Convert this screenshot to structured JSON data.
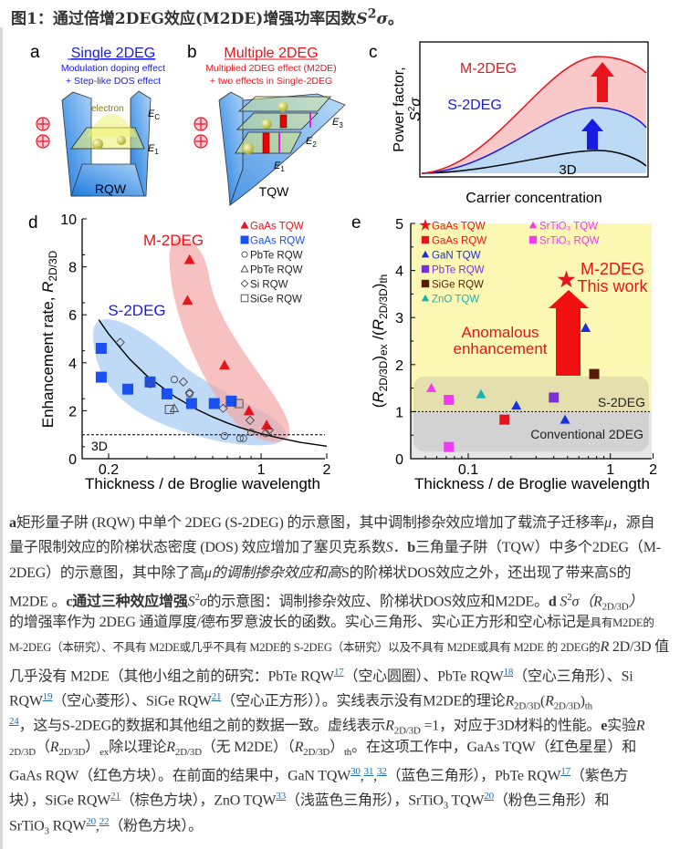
{
  "title": {
    "prefix": "图1：通过倍增2DEG效应(M2DE)增强功率因数",
    "symbol": "S",
    "sup": "2",
    "sigma": "σ",
    "end": "。"
  },
  "panel_a": {
    "letter": "a",
    "heading": "Single 2DEG",
    "line1": "Modulation doping effect",
    "line2": "+ Step-like DOS effect",
    "electron": "electron",
    "ec": "E",
    "ec_sub": "C",
    "e1": "E",
    "e1_sub": "1",
    "well": "RQW",
    "colors": {
      "heading": "#1a1ae6",
      "well": "#4a9be8",
      "plus": "#e8141c"
    }
  },
  "panel_b": {
    "letter": "b",
    "heading": "Multiple 2DEG",
    "line1": "Multiplied 2DEG effect (M2DE)",
    "line2": "+ two effects in Single-2DEG",
    "e1": "E",
    "e1_sub": "1",
    "e2": "E",
    "e2_sub": "2",
    "e3": "E",
    "e3_sub": "3",
    "well": "TQW",
    "colors": {
      "heading": "#e8141c"
    }
  },
  "panel_c": {
    "letter": "c",
    "ylabel": "Power factor,",
    "ylabel2": "S",
    "ylabel2_sup": "2",
    "ylabel2_sym": "σ",
    "xlabel": "Carrier concentration",
    "curves": [
      "M-2DEG",
      "S-2DEG",
      "3D"
    ],
    "colors": {
      "M-2DEG": "#e8141c",
      "S-2DEG": "#1a1ae6",
      "3D": "#000000"
    }
  },
  "chart_data": [
    {
      "panel": "d",
      "type": "scatter",
      "xlabel": "Thickness / de Broglie wavelength",
      "ylabel": {
        "text": "Enhancement rate, ",
        "sym": "R",
        "sub": "2D/3D"
      },
      "xscale": "log",
      "xlim": [
        0.16,
        2
      ],
      "ylim": [
        0,
        10
      ],
      "xticks": [
        "0.2",
        "1",
        "2"
      ],
      "yticks": [
        "0",
        "2",
        "4",
        "6",
        "8",
        "10"
      ],
      "annotations": {
        "m2deg": "M-2DEG",
        "s2deg": "S-2DEG",
        "ref": "3D"
      },
      "reference_line": {
        "y": 1,
        "style": "dashed"
      },
      "theory_curve": {
        "x": [
          0.18,
          0.2,
          0.25,
          0.3,
          0.4,
          0.5,
          0.6,
          0.7,
          0.8,
          1.0,
          1.2,
          1.5,
          2.0
        ],
        "y": [
          5.8,
          5.2,
          4.15,
          3.45,
          2.6,
          2.08,
          1.74,
          1.49,
          1.3,
          1.04,
          0.87,
          0.69,
          0.52
        ]
      },
      "legend": "top-right",
      "series": [
        {
          "name": "GaAs TQW",
          "marker": "triangle-filled",
          "color": "#e8141c",
          "x": [
            0.46,
            0.47,
            0.68,
            0.88,
            1.06
          ],
          "y": [
            6.6,
            8.3,
            3.9,
            2.0,
            1.4
          ]
        },
        {
          "name": "GaAs RQW",
          "marker": "square-filled",
          "color": "#1a4ff0",
          "x": [
            0.185,
            0.185,
            0.245,
            0.31,
            0.37,
            0.48,
            0.61,
            0.73
          ],
          "y": [
            4.6,
            3.4,
            2.9,
            3.2,
            2.7,
            2.3,
            2.3,
            2.4
          ]
        },
        {
          "name": "PbTe RQW",
          "marker": "circle-open",
          "color": "#444444",
          "x": [
            0.31,
            0.4,
            0.47,
            0.68,
            0.8,
            0.83,
            0.9,
            1.05
          ],
          "y": [
            3.1,
            3.3,
            2.7,
            0.95,
            0.85,
            0.85,
            1.1,
            1.05
          ]
        },
        {
          "name": "PbTe RQW",
          "marker": "triangle-open",
          "color": "#444444",
          "x": [
            0.4
          ],
          "y": [
            2.1
          ]
        },
        {
          "name": "Si RQW",
          "marker": "diamond-open",
          "color": "#444444",
          "x": [
            0.226,
            0.44,
            0.47,
            0.67,
            0.89,
            1.09
          ],
          "y": [
            4.85,
            3.2,
            2.75,
            2.1,
            1.6,
            1.2
          ]
        },
        {
          "name": "SiGe RQW",
          "marker": "square-open",
          "color": "#444444",
          "x": [
            0.38,
            0.79
          ],
          "y": [
            2.05,
            2.3
          ]
        }
      ]
    },
    {
      "panel": "e",
      "type": "scatter",
      "xlabel": "Thickness / de Broglie wavelength",
      "ylabel": {
        "open1": "(",
        "sym1": "R",
        "sub1": "2D/3D",
        "close1": ")",
        "sub_ex": "ex",
        "mid": " /(",
        "sym2": "R",
        "sub2": "2D/3D",
        "close2": ")",
        "sub_th": "th"
      },
      "xscale": "log",
      "xlim": [
        0.045,
        2
      ],
      "ylim": [
        0,
        5
      ],
      "xticks": [
        "0.1",
        "1",
        "2"
      ],
      "yticks": [
        "0",
        "1",
        "2",
        "3",
        "4",
        "5"
      ],
      "background": "#fcf8b4",
      "annotations": {
        "title1": "M-2DEG",
        "title2": "This work",
        "arrow1": "Anomalous",
        "arrow2": "enhancement",
        "band_upper": "S-2DEG",
        "band_lower": "Conventional 2DEG"
      },
      "reference_line": {
        "y": 1,
        "style": "dotted"
      },
      "legend": "top-left",
      "series": [
        {
          "name": "GaAs TQW",
          "marker": "star",
          "color": "#e8141c",
          "x": [
            0.49
          ],
          "y": [
            3.8
          ]
        },
        {
          "name": "GaAs RQW",
          "marker": "square-filled",
          "color": "#e8141c",
          "x": [
            0.18
          ],
          "y": [
            0.83
          ]
        },
        {
          "name": "GaN TQW",
          "marker": "triangle-filled",
          "color": "#1a2fe0",
          "x": [
            0.218,
            0.48,
            0.67
          ],
          "y": [
            1.13,
            0.83,
            2.78
          ]
        },
        {
          "name": "PbTe RQW",
          "marker": "square-filled",
          "color": "#7d2fd6",
          "x": [
            0.4
          ],
          "y": [
            1.3
          ]
        },
        {
          "name": "SiGe RQW",
          "marker": "square-filled",
          "color": "#5a1a08",
          "x": [
            0.77
          ],
          "y": [
            1.8
          ]
        },
        {
          "name": "ZnO TQW",
          "marker": "triangle-filled",
          "color": "#1ab3b3",
          "x": [
            0.123
          ],
          "y": [
            1.37
          ]
        },
        {
          "name": "SrTiO₃ TQW",
          "marker": "triangle-filled",
          "color": "#f03cf0",
          "x": [
            0.055
          ],
          "y": [
            1.5
          ]
        },
        {
          "name": "SrTiO₃ RQW",
          "marker": "square-filled",
          "color": "#f03cf0",
          "x": [
            0.073,
            0.073
          ],
          "y": [
            1.25,
            0.25
          ]
        }
      ]
    }
  ],
  "caption": [
    [
      [
        "b",
        "a"
      ],
      [
        "n",
        "矩形量子阱 (RQW) 中单个 2DEG (S-2DEG) 的示意图，其中调制掺杂效应增加了载流子迁移率"
      ],
      [
        "i",
        "μ"
      ],
      [
        "n",
        "，源自"
      ]
    ],
    [
      [
        "n",
        "量子限制效应的阶梯状态密度 (DOS) 效应增加了塞贝克系数"
      ],
      [
        "i",
        "S"
      ],
      [
        "n",
        "．"
      ],
      [
        "b",
        "b"
      ],
      [
        "n",
        "三角量子阱（TQW）中多个2DEG（M-"
      ]
    ],
    [
      [
        "n",
        "2DEG）的示意图，其中除了高"
      ],
      [
        "i",
        "μ的调制掺杂效应和高"
      ],
      [
        "n",
        "S的阶梯状DOS效应之外，还出现了带来高S的"
      ]
    ],
    [
      [
        "n",
        "M2DE 。"
      ],
      [
        "b",
        "c通过三种效应增强"
      ],
      [
        "i",
        "S"
      ],
      [
        "sup",
        "2"
      ],
      [
        "i",
        "σ"
      ],
      [
        "n",
        "的示意图：调制掺杂效应、阶梯状DOS效应和M2DE。"
      ],
      [
        "b",
        "d "
      ],
      [
        "i",
        "S"
      ],
      [
        "sup",
        "2"
      ],
      [
        "i",
        "σ（R"
      ],
      [
        "sub",
        "2D/3D"
      ],
      [
        "i",
        "）"
      ]
    ],
    [
      [
        "n",
        "的增强率作为 2DEG 通道厚度/德布罗意波长的函数。实心三角形、实心正方形和空心标记是"
      ],
      [
        "sm",
        "具有M2DE的"
      ]
    ],
    [
      [
        "sm",
        "M-2DEG（本研究）、不具有 M2DE或几乎不具有 M2DE的 S-2DEG（本研究）以及不具有 M2DE或具有 M2DE 的 2DEG的"
      ],
      [
        "i",
        "R"
      ],
      [
        "n",
        " 2D/3D 值"
      ]
    ],
    [
      [
        "n",
        "几乎没有 M2DE（其他小组之前的研究：PbTe RQW"
      ],
      [
        "link",
        "17"
      ],
      [
        "n",
        "（空心圆圈）、PbTe RQW"
      ],
      [
        "link",
        "18"
      ],
      [
        "n",
        "（空心三角形）、Si"
      ]
    ],
    [
      [
        "n",
        "RQW"
      ],
      [
        "link",
        "19"
      ],
      [
        "n",
        "（空心菱形）、SiGe RQW"
      ],
      [
        "link",
        "21"
      ],
      [
        "n",
        "（空心正方形））。实线表示没有M2DE的理论"
      ],
      [
        "i",
        "R"
      ],
      [
        "sub",
        "2D/3D"
      ],
      [
        "n",
        "("
      ],
      [
        "i",
        "R"
      ],
      [
        "sub",
        "2D/3D"
      ],
      [
        "n",
        ")"
      ],
      [
        "sub",
        "th"
      ]
    ],
    [
      [
        "link",
        "24"
      ],
      [
        "n",
        "，这与S-2DEG的数据和其他组之前的数据一致。虚线表示"
      ],
      [
        "i",
        "R"
      ],
      [
        "sub",
        "2D/3D"
      ],
      [
        "n",
        " =1，对应于3D材料的性能。"
      ],
      [
        "b",
        "e"
      ],
      [
        "n",
        "实验"
      ],
      [
        "i",
        "R"
      ]
    ],
    [
      [
        "sub",
        "2D/3D"
      ],
      [
        "n",
        "（"
      ],
      [
        "i",
        "R"
      ],
      [
        "sub",
        "2D/3D"
      ],
      [
        "n",
        "）"
      ],
      [
        "sub",
        "ex"
      ],
      [
        "n",
        "除以理论"
      ],
      [
        "i",
        "R"
      ],
      [
        "sub",
        "2D/3D"
      ],
      [
        "n",
        "（无 M2DE）（"
      ],
      [
        "i",
        "R"
      ],
      [
        "sub",
        "2D/3D"
      ],
      [
        "n",
        "）"
      ],
      [
        "sub",
        "th"
      ],
      [
        "n",
        "。在这项工作中，GaAs TQW（红色星星）和"
      ]
    ],
    [
      [
        "n",
        "GaAs RQW（红色方块）。在前面的结果中，GaN TQW"
      ],
      [
        "link",
        "30"
      ],
      [
        "n",
        ","
      ],
      [
        "link",
        "31"
      ],
      [
        "n",
        ","
      ],
      [
        "link",
        "32"
      ],
      [
        "n",
        "（蓝色三角形），PbTe RQW"
      ],
      [
        "link",
        "17"
      ],
      [
        "n",
        "（紫色方"
      ]
    ],
    [
      [
        "n",
        "块），SiGe RQW"
      ],
      [
        "link",
        "21"
      ],
      [
        "n",
        "（棕色方块），ZnO TQW"
      ],
      [
        "link",
        "33"
      ],
      [
        "n",
        "（浅蓝色三角形），SrTiO"
      ],
      [
        "sub",
        "3"
      ],
      [
        "n",
        " TQW"
      ],
      [
        "link",
        "20"
      ],
      [
        "n",
        "（粉色三角形）和"
      ]
    ],
    [
      [
        "n",
        "SrTiO"
      ],
      [
        "sub",
        "3"
      ],
      [
        "n",
        " RQW"
      ],
      [
        "link",
        "20"
      ],
      [
        "n",
        ","
      ],
      [
        "link",
        "22"
      ],
      [
        "n",
        "（粉色方块）。"
      ]
    ]
  ]
}
